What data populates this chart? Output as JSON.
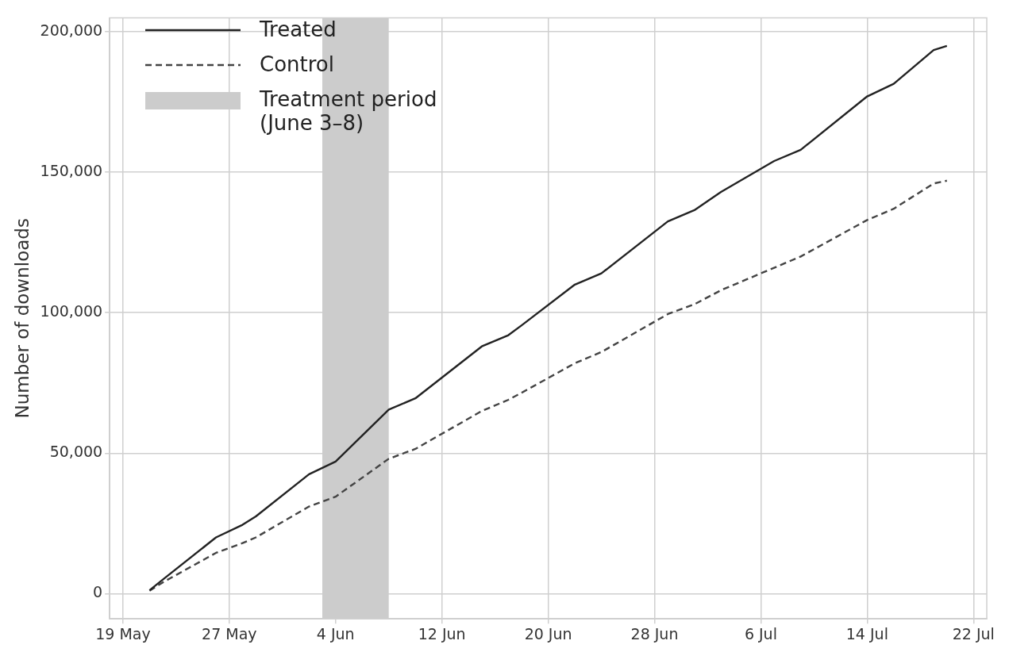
{
  "chart_data": {
    "type": "line",
    "ylabel": "Number of downloads",
    "x": [
      "--05-21",
      "--05-22",
      "--05-26",
      "--05-28",
      "--05-29",
      "--06-02",
      "--06-04",
      "--06-08",
      "--06-10",
      "--06-15",
      "--06-17",
      "--06-18",
      "--06-22",
      "--06-24",
      "--06-29",
      "--07-01",
      "--07-03",
      "--07-07",
      "--07-09",
      "--07-14",
      "--07-16",
      "--07-19",
      "--07-20"
    ],
    "series": [
      {
        "name": "Treated",
        "color": "#222222",
        "line_style": "solid",
        "values": [
          1200,
          5000,
          20000,
          24500,
          27500,
          42500,
          47000,
          65500,
          69500,
          88000,
          92000,
          95500,
          110000,
          114000,
          132500,
          136500,
          143000,
          154000,
          158000,
          177000,
          181500,
          193500,
          195000
        ]
      },
      {
        "name": "Control",
        "color": "#444444",
        "line_style": "dashed",
        "values": [
          1000,
          4000,
          14500,
          18000,
          20000,
          31000,
          34500,
          48000,
          51500,
          65000,
          69000,
          71500,
          82000,
          86000,
          99500,
          103000,
          108000,
          116000,
          120000,
          133000,
          137000,
          146000,
          147000
        ]
      }
    ],
    "bands": [
      {
        "axis": "x",
        "from": "--06-03",
        "to": "--06-08",
        "label": "Treatment period (June 3–8)",
        "color": "#cccccc"
      }
    ],
    "xlim": [
      "--05-18",
      "--07-23"
    ],
    "xticks": [
      {
        "value": "--05-19",
        "label": "19 May"
      },
      {
        "value": "--05-27",
        "label": "27 May"
      },
      {
        "value": "--06-04",
        "label": "4 Jun"
      },
      {
        "value": "--06-12",
        "label": "12 Jun"
      },
      {
        "value": "--06-20",
        "label": "20 Jun"
      },
      {
        "value": "--06-28",
        "label": "28 Jun"
      },
      {
        "value": "--07-06",
        "label": "6 Jul"
      },
      {
        "value": "--07-14",
        "label": "14 Jul"
      },
      {
        "value": "--07-22",
        "label": "22 Jul"
      }
    ],
    "ylim": [
      -9000,
      205000
    ],
    "yticks": [
      0,
      {
        "value": 50000,
        "label": "50,000"
      },
      {
        "value": 100000,
        "label": "100,000"
      },
      {
        "value": 150000,
        "label": "150,000"
      },
      {
        "value": 200000,
        "label": "200,000"
      }
    ],
    "grid": true,
    "legend": "top left"
  }
}
